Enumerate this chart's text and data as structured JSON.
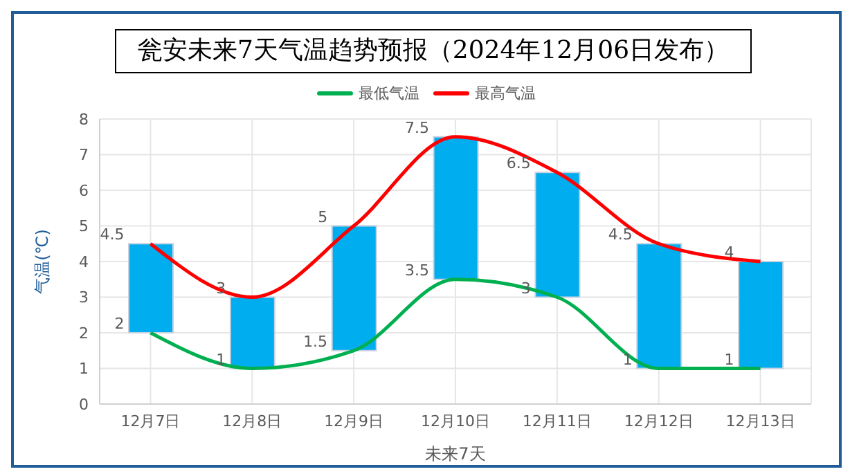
{
  "chart_data": {
    "type": "bar",
    "title": "瓮安未来7天气温趋势预报（2024年12月06日发布）",
    "xlabel": "未来7天",
    "ylabel": "气温(℃)",
    "categories": [
      "12月7日",
      "12月8日",
      "12月9日",
      "12月10日",
      "12月11日",
      "12月12日",
      "12月13日"
    ],
    "series": [
      {
        "color": "#00aeef",
        "base": [
          2,
          1,
          1.5,
          3.5,
          3,
          1,
          1
        ],
        "values": [
          2.5,
          2,
          3.5,
          4,
          3.5,
          3.5,
          3
        ]
      },
      {
        "type": "line",
        "name": "最低气温",
        "color": "#00b050",
        "values": [
          2,
          1,
          1.5,
          3.5,
          3,
          1,
          1
        ],
        "data_labels": true
      },
      {
        "type": "line",
        "name": "最高气温",
        "color": "#ff0000",
        "values": [
          4.5,
          3,
          5,
          7.5,
          6.5,
          4.5,
          4
        ],
        "data_labels": true
      }
    ],
    "ylim": [
      0,
      8
    ],
    "yticks": [
      0,
      1,
      2,
      3,
      4,
      5,
      6,
      7,
      8
    ],
    "grid": true,
    "legend": "top"
  }
}
